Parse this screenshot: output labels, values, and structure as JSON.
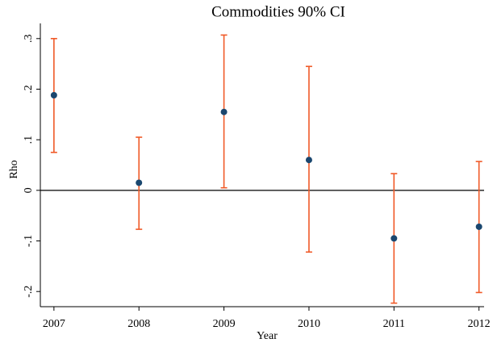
{
  "chart_data": {
    "type": "errorbar",
    "title": "Commodities 90% CI",
    "x_label": "Year",
    "y_label": "Rho",
    "x": [
      2007,
      2008,
      2009,
      2010,
      2011,
      2012
    ],
    "values": [
      0.188,
      0.015,
      0.155,
      0.06,
      -0.095,
      -0.072
    ],
    "lower": [
      0.075,
      -0.077,
      0.005,
      -0.122,
      -0.223,
      -0.202
    ],
    "upper": [
      0.3,
      0.105,
      0.307,
      0.245,
      0.033,
      0.057
    ],
    "point_color": "#1a476f",
    "bar_color": "#f05a28",
    "xlim": [
      2006.84,
      2012.06
    ],
    "xticks": [
      2007,
      2008,
      2009,
      2010,
      2011,
      2012
    ],
    "ylim": [
      -0.23,
      0.33
    ],
    "yticks": [
      {
        "value": -0.2,
        "label": "-.2"
      },
      {
        "value": -0.1,
        "label": "-.1"
      },
      0,
      {
        "value": 0.1,
        "label": ".1"
      },
      {
        "value": 0.2,
        "label": ".2"
      },
      {
        "value": 0.3,
        "label": ".3"
      }
    ],
    "yline": 0
  }
}
